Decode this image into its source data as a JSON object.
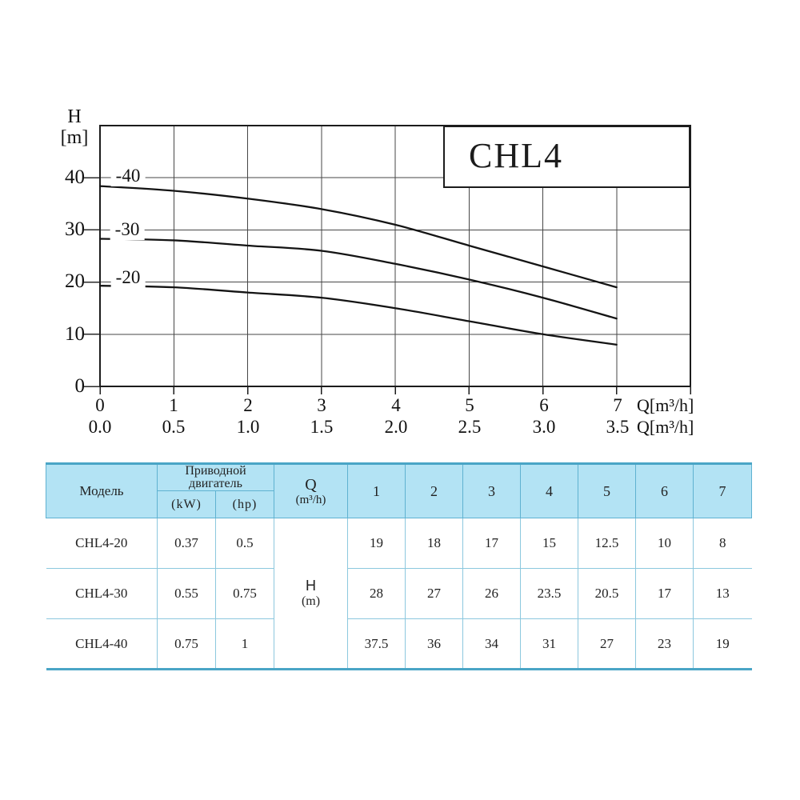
{
  "chart": {
    "title": "CHL4",
    "y_axis": {
      "label_line1": "H",
      "label_line2": "[m]",
      "ticks": [
        "40",
        "30",
        "20",
        "10",
        "0"
      ]
    },
    "x_axis": {
      "row1_ticks": [
        "0",
        "1",
        "2",
        "3",
        "4",
        "5",
        "6",
        "7"
      ],
      "row1_unit": "Q[m³/h]",
      "row2_ticks": [
        "0.0",
        "0.5",
        "1.0",
        "1.5",
        "2.0",
        "2.5",
        "3.0",
        "3.5"
      ],
      "row2_unit": "Q[m³/h]"
    },
    "curve_labels": [
      "-40",
      "-30",
      "-20"
    ]
  },
  "chart_data": {
    "type": "line",
    "title": "CHL4",
    "xlabel": "Q[m3/h]",
    "ylabel": "H [m]",
    "x": [
      0,
      1,
      2,
      3,
      4,
      5,
      6,
      7
    ],
    "xlim": [
      0,
      8
    ],
    "ylim": [
      0,
      50
    ],
    "grid": true,
    "y_gridlines": [
      10,
      20,
      30,
      40
    ],
    "x_secondary_scale": [
      "0.0",
      "0.5",
      "1.0",
      "1.5",
      "2.0",
      "2.5",
      "3.0",
      "3.5"
    ],
    "series": [
      {
        "name": "-40",
        "model": "CHL4-40",
        "values": [
          38.4,
          37.5,
          36,
          34,
          31,
          27,
          23,
          19
        ]
      },
      {
        "name": "-30",
        "model": "CHL4-30",
        "values": [
          28.3,
          28,
          27,
          26,
          23.5,
          20.5,
          17,
          13
        ]
      },
      {
        "name": "-20",
        "model": "CHL4-20",
        "values": [
          19.3,
          19,
          18,
          17,
          15,
          12.5,
          10,
          8
        ]
      }
    ],
    "legend_position": "on-curve-left"
  },
  "table": {
    "header": {
      "model": "Модель",
      "motor_line1": "Приводной",
      "motor_line2": "двигатель",
      "kw": "(kW)",
      "hp": "(hp)",
      "q_line1": "Q",
      "q_line2": "(m³/h)",
      "flow_cols": [
        "1",
        "2",
        "3",
        "4",
        "5",
        "6",
        "7"
      ]
    },
    "h_cell": {
      "line1": "H",
      "line2": "(m)"
    },
    "rows": [
      {
        "model": "CHL4-20",
        "kw": "0.37",
        "hp": "0.5",
        "h": [
          "19",
          "18",
          "17",
          "15",
          "12.5",
          "10",
          "8"
        ]
      },
      {
        "model": "CHL4-30",
        "kw": "0.55",
        "hp": "0.75",
        "h": [
          "28",
          "27",
          "26",
          "23.5",
          "20.5",
          "17",
          "13"
        ]
      },
      {
        "model": "CHL4-40",
        "kw": "0.75",
        "hp": "1",
        "h": [
          "37.5",
          "36",
          "34",
          "31",
          "27",
          "23",
          "19"
        ]
      }
    ]
  }
}
